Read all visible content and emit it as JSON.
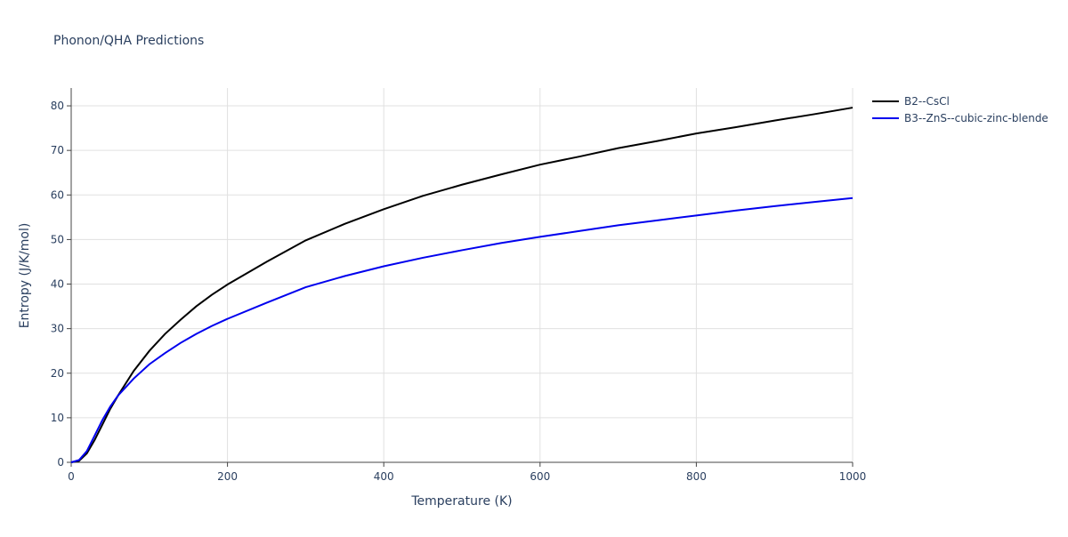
{
  "chart_data": {
    "type": "line",
    "title": "Phonon/QHA Predictions",
    "x_label": "Temperature (K)",
    "y_label": "Entropy (J/K/mol)",
    "x": [
      0,
      10,
      20,
      30,
      40,
      50,
      60,
      80,
      100,
      120,
      140,
      160,
      180,
      200,
      250,
      300,
      350,
      400,
      450,
      500,
      550,
      600,
      650,
      700,
      750,
      800,
      850,
      900,
      950,
      1000
    ],
    "series": [
      {
        "name": "B2--CsCl",
        "color": "#000000",
        "values": [
          0,
          0.3,
          2,
          5,
          8.5,
          12,
          15,
          20.5,
          25,
          28.8,
          32,
          35,
          37.6,
          39.9,
          45,
          49.8,
          53.5,
          56.8,
          59.8,
          62.3,
          64.6,
          66.8,
          68.6,
          70.5,
          72.1,
          73.8,
          75.2,
          76.7,
          78.1,
          79.6
        ]
      },
      {
        "name": "B3--ZnS--cubic-zinc-blende",
        "color": "#0000ee",
        "values": [
          0,
          0.5,
          2.5,
          6,
          9.5,
          12.5,
          15,
          18.8,
          22,
          24.5,
          26.8,
          28.8,
          30.6,
          32.2,
          35.8,
          39.3,
          41.8,
          44,
          45.9,
          47.6,
          49.2,
          50.6,
          51.9,
          53.2,
          54.3,
          55.4,
          56.5,
          57.5,
          58.4,
          59.3
        ]
      }
    ],
    "xlim": [
      0,
      1000
    ],
    "xticks": [
      0,
      200,
      400,
      600,
      800,
      1000
    ],
    "ylim": [
      0,
      84
    ],
    "yticks": [
      0,
      10,
      20,
      30,
      40,
      50,
      60,
      70,
      80
    ],
    "grid": true,
    "legend": "right"
  }
}
